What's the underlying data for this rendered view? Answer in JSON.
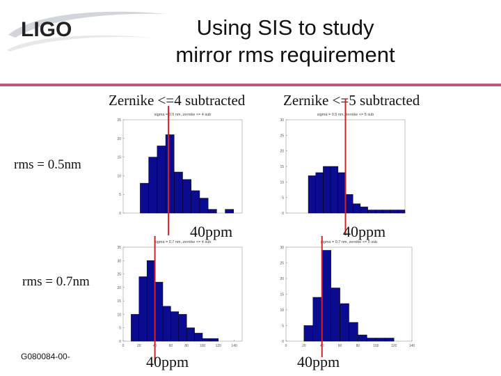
{
  "header": {
    "logo_text": "LIGO",
    "title_line1": "Using SIS to study",
    "title_line2": "mirror rms requirement",
    "rule_color": "#c0587e",
    "logo_swoosh_color": "#bfc5cc"
  },
  "columns": {
    "left": "Zernike <=4 subtracted",
    "right": "Zernike <=5 subtracted"
  },
  "rows": {
    "top": "rms = 0.5nm",
    "bottom": "rms = 0.7nm"
  },
  "markers": {
    "top_left": "40ppm",
    "top_right": "40ppm",
    "bottom_left": "40ppm",
    "bottom_right": "40ppm"
  },
  "footer": {
    "doc_id": "G080084-00-"
  },
  "colors": {
    "bar_fill": "#0b0b8f",
    "bar_stroke": "#000000",
    "marker": "#d42020"
  },
  "chart_data": [
    {
      "type": "bar",
      "title": "sigma = 0.5 nm, zernike <= 4 sub",
      "xlabel": "",
      "ylabel": "",
      "bin_start": 0,
      "bin_width": 7.5,
      "values": [
        0,
        0,
        8,
        15,
        18,
        21,
        11,
        9,
        6,
        4,
        1,
        0,
        1,
        0
      ],
      "xlim": [
        0,
        105
      ],
      "ylim": [
        0,
        25
      ],
      "xticks": [],
      "yticks": [
        0,
        5,
        10,
        15,
        20,
        25
      ],
      "marker_x": 40
    },
    {
      "type": "bar",
      "title": "sigma = 0.5 nm, zernike <= 5 sub",
      "xlabel": "",
      "ylabel": "",
      "bin_start": 0,
      "bin_width": 5,
      "values": [
        0,
        0,
        0,
        12,
        13,
        15,
        15,
        13,
        6,
        3,
        2,
        1,
        1,
        1,
        1,
        1
      ],
      "xlim": [
        0,
        80
      ],
      "ylim": [
        0,
        30
      ],
      "xticks": [],
      "yticks": [
        0,
        5,
        10,
        15,
        20,
        25,
        30
      ],
      "marker_x": 40
    },
    {
      "type": "bar",
      "title": "sigma = 0.7 nm, zernike <= 4 sub",
      "xlabel": "",
      "ylabel": "",
      "bin_start": 0,
      "bin_width": 10,
      "values": [
        0,
        10,
        24,
        30,
        22,
        13,
        11,
        10,
        5,
        3,
        1,
        1,
        0
      ],
      "xlim": [
        0,
        150
      ],
      "ylim": [
        0,
        35
      ],
      "xticks": [
        0,
        20,
        40,
        60,
        80,
        100,
        120,
        140
      ],
      "yticks": [
        0,
        5,
        10,
        15,
        20,
        25,
        30,
        35
      ],
      "marker_x": 40
    },
    {
      "type": "bar",
      "title": "sigma = 0.7 nm, zernike <= 5 sub",
      "xlabel": "",
      "ylabel": "",
      "bin_start": 0,
      "bin_width": 10,
      "values": [
        0,
        0,
        5,
        14,
        29,
        17,
        12,
        6,
        2,
        1,
        1,
        1,
        0
      ],
      "xlim": [
        0,
        140
      ],
      "ylim": [
        0,
        30
      ],
      "xticks": [
        0,
        20,
        40,
        60,
        80,
        100,
        120,
        140
      ],
      "yticks": [
        0,
        5,
        10,
        15,
        20,
        25,
        30
      ],
      "marker_x": 40
    }
  ]
}
